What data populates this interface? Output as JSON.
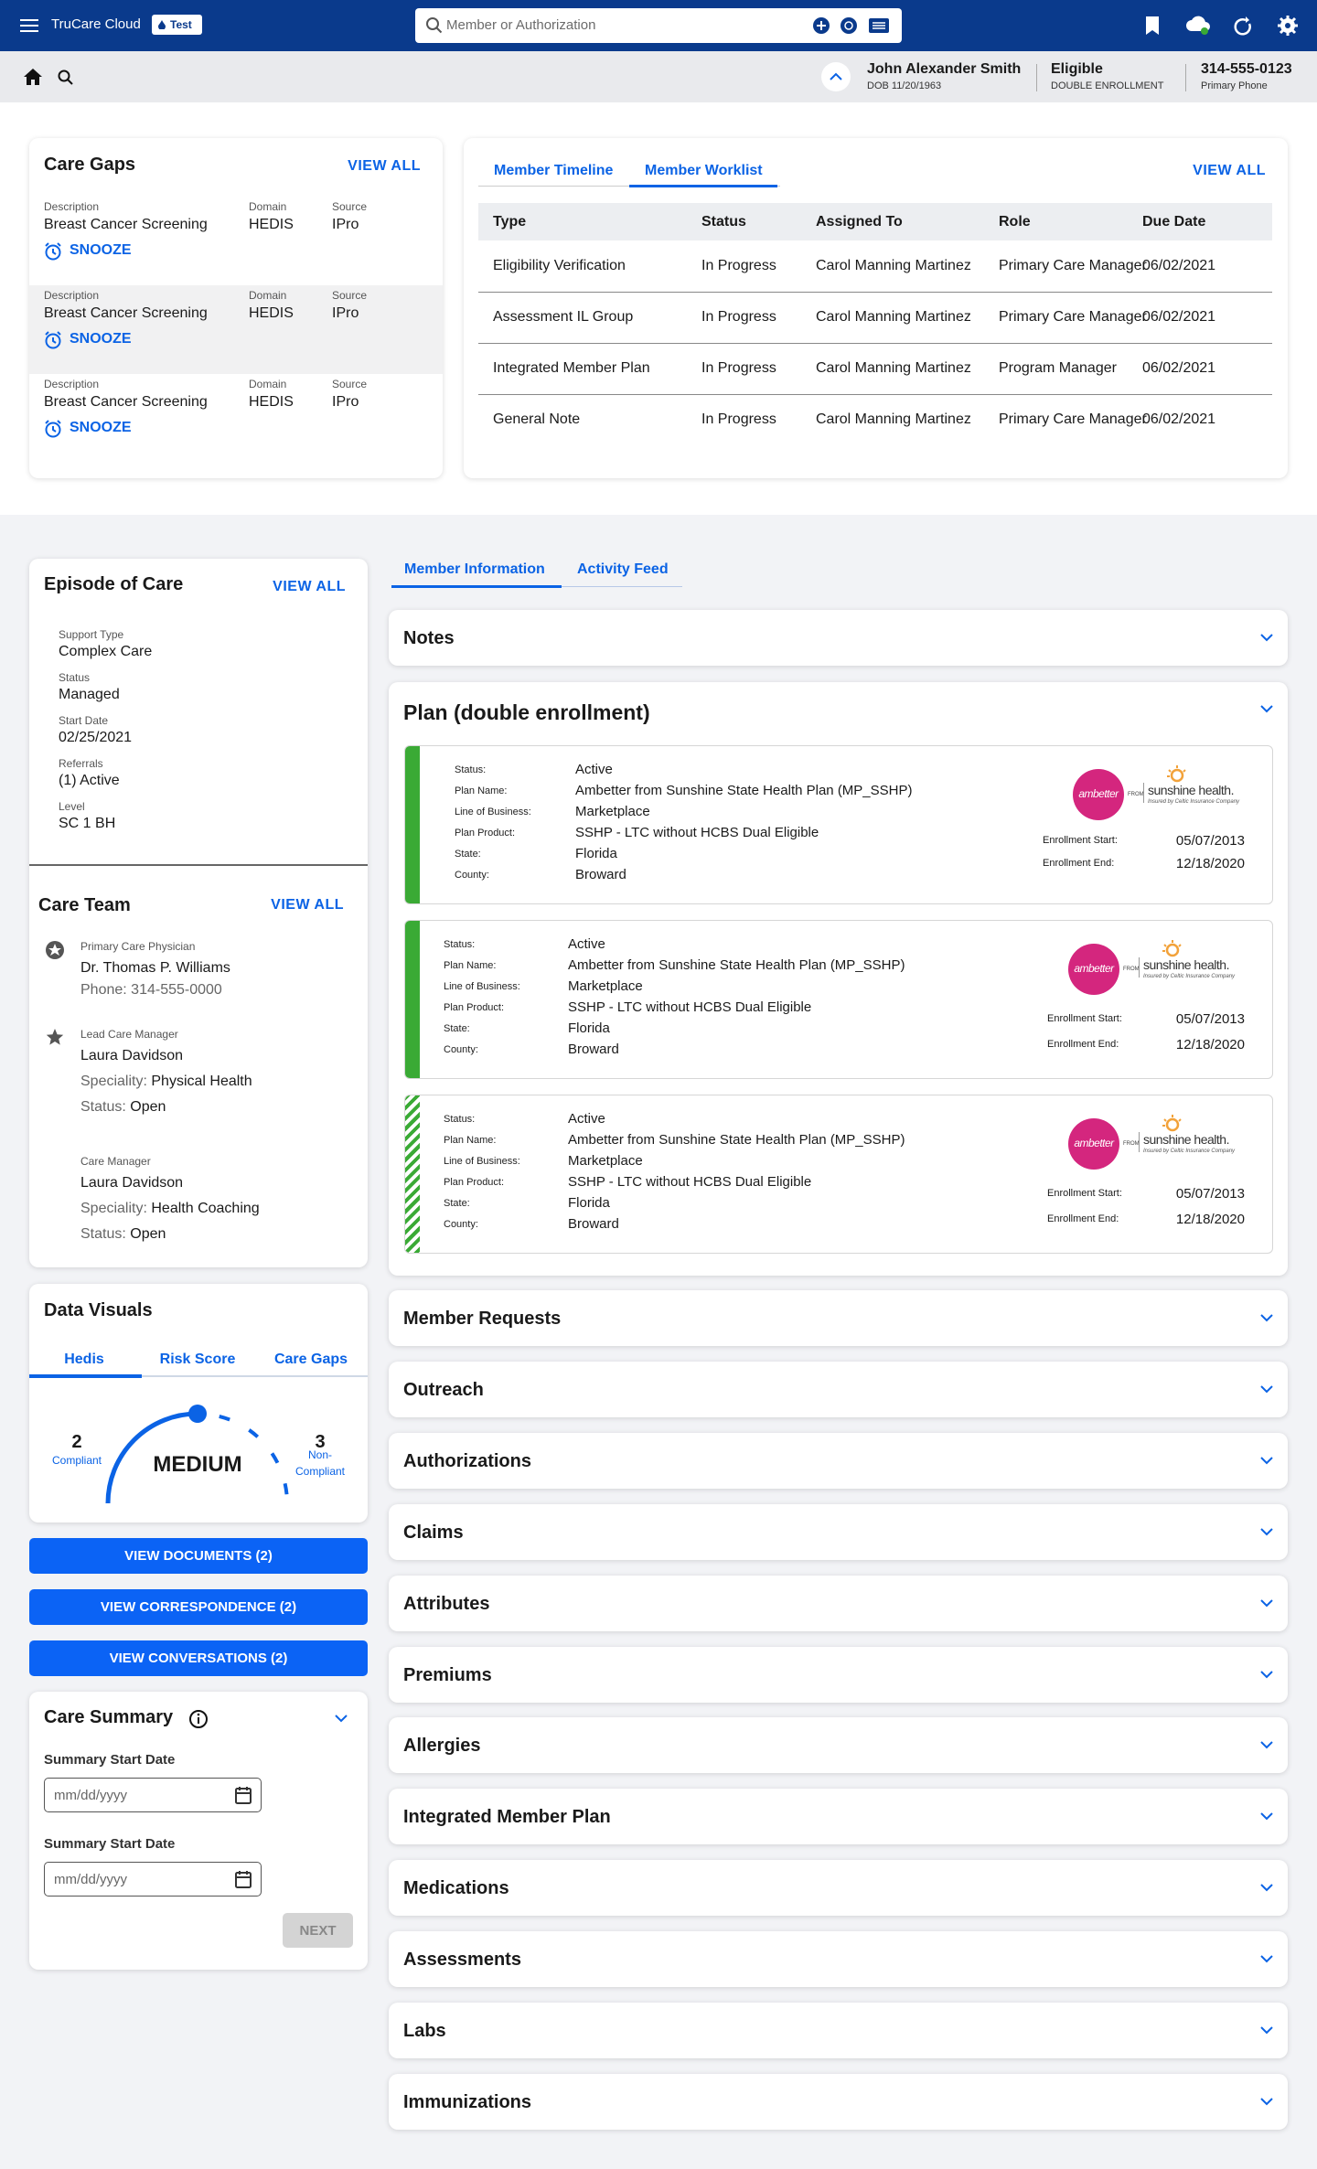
{
  "header": {
    "app_name": "TruCare Cloud",
    "env_badge": "Test",
    "search_placeholder": "Member or Authorization"
  },
  "member": {
    "name": "John Alexander Smith",
    "dob": "DOB 11/20/1963",
    "status": "Eligible",
    "enrollment": "DOUBLE ENROLLMENT",
    "phone": "314-555-0123",
    "phone_label": "Primary Phone"
  },
  "care_gaps": {
    "title": "Care Gaps",
    "view_all": "VIEW ALL",
    "column_labels": [
      "Description",
      "Domain",
      "Source"
    ],
    "action": "SNOOZE",
    "items": [
      {
        "description": "Breast Cancer Screening",
        "domain": "HEDIS",
        "source": "IPro"
      },
      {
        "description": "Breast Cancer Screening",
        "domain": "HEDIS",
        "source": "IPro"
      },
      {
        "description": "Breast Cancer Screening",
        "domain": "HEDIS",
        "source": "IPro"
      }
    ]
  },
  "worklist": {
    "tabs": [
      "Member Timeline",
      "Member Worklist"
    ],
    "view_all": "VIEW ALL",
    "columns": [
      "Type",
      "Status",
      "Assigned To",
      "Role",
      "Due Date"
    ],
    "rows": [
      [
        "Eligibility Verification",
        "In Progress",
        "Carol Manning Martinez",
        "Primary Care Manager",
        "06/02/2021"
      ],
      [
        "Assessment IL Group",
        "In Progress",
        "Carol Manning Martinez",
        "Primary Care Manager",
        "06/02/2021"
      ],
      [
        "Integrated Member Plan",
        "In Progress",
        "Carol Manning Martinez",
        "Program Manager",
        "06/02/2021"
      ],
      [
        "General Note",
        "In Progress",
        "Carol Manning Martinez",
        "Primary Care Manager",
        "06/02/2021"
      ]
    ]
  },
  "episode_of_care": {
    "title": "Episode of Care",
    "view_all": "VIEW ALL",
    "fields": [
      {
        "label": "Support Type",
        "value": "Complex Care"
      },
      {
        "label": "Status",
        "value": "Managed"
      },
      {
        "label": "Start Date",
        "value": "02/25/2021"
      },
      {
        "label": "Referrals",
        "value": "(1) Active"
      },
      {
        "label": "Level",
        "value": "SC 1 BH"
      }
    ]
  },
  "care_team": {
    "title": "Care Team",
    "view_all": "VIEW ALL",
    "members": [
      {
        "role": "Primary Care Physician",
        "name": "Dr. Thomas P. Williams",
        "lines": [
          {
            "label": "Phone:",
            "value": "314-555-0000"
          }
        ]
      },
      {
        "role": "Lead Care Manager",
        "name": "Laura Davidson",
        "lines": [
          {
            "label": "Speciality:",
            "value": "Physical Health"
          },
          {
            "label": "Status:",
            "value": "Open"
          }
        ]
      },
      {
        "role": "Care Manager",
        "name": "Laura Davidson",
        "lines": [
          {
            "label": "Speciality:",
            "value": "Health Coaching"
          },
          {
            "label": "Status:",
            "value": "Open"
          }
        ]
      }
    ]
  },
  "data_visuals": {
    "title": "Data Visuals",
    "tabs": [
      "Hedis",
      "Risk Score",
      "Care Gaps"
    ],
    "compliant": {
      "count": 2,
      "label": "Compliant"
    },
    "level": "MEDIUM",
    "non_compliant": {
      "count": 3,
      "label": "Non-Compliant"
    }
  },
  "buttons": [
    "VIEW DOCUMENTS (2)",
    "VIEW CORRESPONDENCE (2)",
    "VIEW CONVERSATIONS (2)"
  ],
  "care_summary": {
    "title": "Care Summary",
    "fields": [
      {
        "label": "Summary Start Date",
        "placeholder": "mm/dd/yyyy"
      },
      {
        "label": "Summary Start Date",
        "placeholder": "mm/dd/yyyy"
      }
    ],
    "next": "NEXT"
  },
  "member_tabs": [
    "Member Information",
    "Activity Feed"
  ],
  "notes_title": "Notes",
  "plan": {
    "title": "Plan (double enrollment)",
    "field_labels": [
      "Status:",
      "Plan Name:",
      "Line of Business:",
      "Plan Product:",
      "State:",
      "County:"
    ],
    "enrollment_labels": [
      "Enrollment Start:",
      "Enrollment End:"
    ],
    "logo": {
      "brand": "ambetter",
      "from": "FROM",
      "partner": "sunshine health.",
      "tagline": "Insured by Celtic Insurance Company"
    },
    "cards": [
      {
        "stripe": "solid",
        "values": [
          "Active",
          "Ambetter from Sunshine State Health Plan (MP_SSHP)",
          "Marketplace",
          "SSHP - LTC without HCBS Dual Eligible",
          "Florida",
          "Broward"
        ],
        "enrollment_start": "05/07/2013",
        "enrollment_end": "12/18/2020"
      },
      {
        "stripe": "solid",
        "values": [
          "Active",
          "Ambetter from Sunshine State Health Plan (MP_SSHP)",
          "Marketplace",
          "SSHP - LTC without HCBS Dual Eligible",
          "Florida",
          "Broward"
        ],
        "enrollment_start": "05/07/2013",
        "enrollment_end": "12/18/2020"
      },
      {
        "stripe": "hatched",
        "values": [
          "Active",
          "Ambetter from Sunshine State Health Plan (MP_SSHP)",
          "Marketplace",
          "SSHP - LTC without HCBS Dual Eligible",
          "Florida",
          "Broward"
        ],
        "enrollment_start": "05/07/2013",
        "enrollment_end": "12/18/2020"
      }
    ]
  },
  "sections": [
    "Member Requests",
    "Outreach",
    "Authorizations",
    "Claims",
    "Attributes",
    "Premiums",
    "Allergies",
    "Integrated Member Plan",
    "Medications",
    "Assessments",
    "Labs",
    "Immunizations"
  ]
}
